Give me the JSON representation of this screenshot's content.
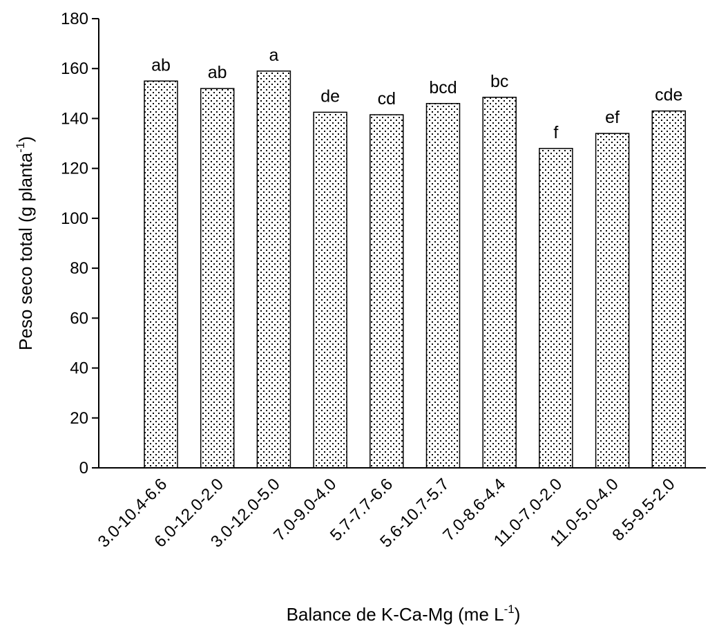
{
  "chart_data": {
    "type": "bar",
    "categories": [
      "3.0-10.4-6.6",
      "6.0-12.0-2.0",
      "3.0-12.0-5.0",
      "7.0-9.0-4.0",
      "5.7-7.7-6.6",
      "5.6-10.7-5.7",
      "7.0-8.6-4.4",
      "11.0-7.0-2.0",
      "11.0-5.0-4.0",
      "8.5-9.5-2.0"
    ],
    "values": [
      155,
      152,
      159,
      142.5,
      141.5,
      146,
      148.5,
      128,
      134,
      143
    ],
    "significance_letters": [
      "ab",
      "ab",
      "a",
      "de",
      "cd",
      "bcd",
      "bc",
      "f",
      "ef",
      "cde"
    ],
    "ylabel": {
      "main": "Peso seco total (g planta",
      "superscript": "-1",
      "close": ")"
    },
    "xlabel": {
      "main": "Balance de K-Ca-Mg (me L",
      "superscript": "-1",
      "close": ")"
    },
    "ylim": [
      0,
      180
    ],
    "yticks": [
      0,
      20,
      40,
      60,
      80,
      100,
      120,
      140,
      160,
      180
    ],
    "grid": false,
    "legend": "none",
    "bar_fill": "dotted-pattern",
    "colors": {
      "bar_stroke": "#000000",
      "bar_background": "#ffffff",
      "dot": "#000000",
      "axis": "#000000"
    }
  }
}
